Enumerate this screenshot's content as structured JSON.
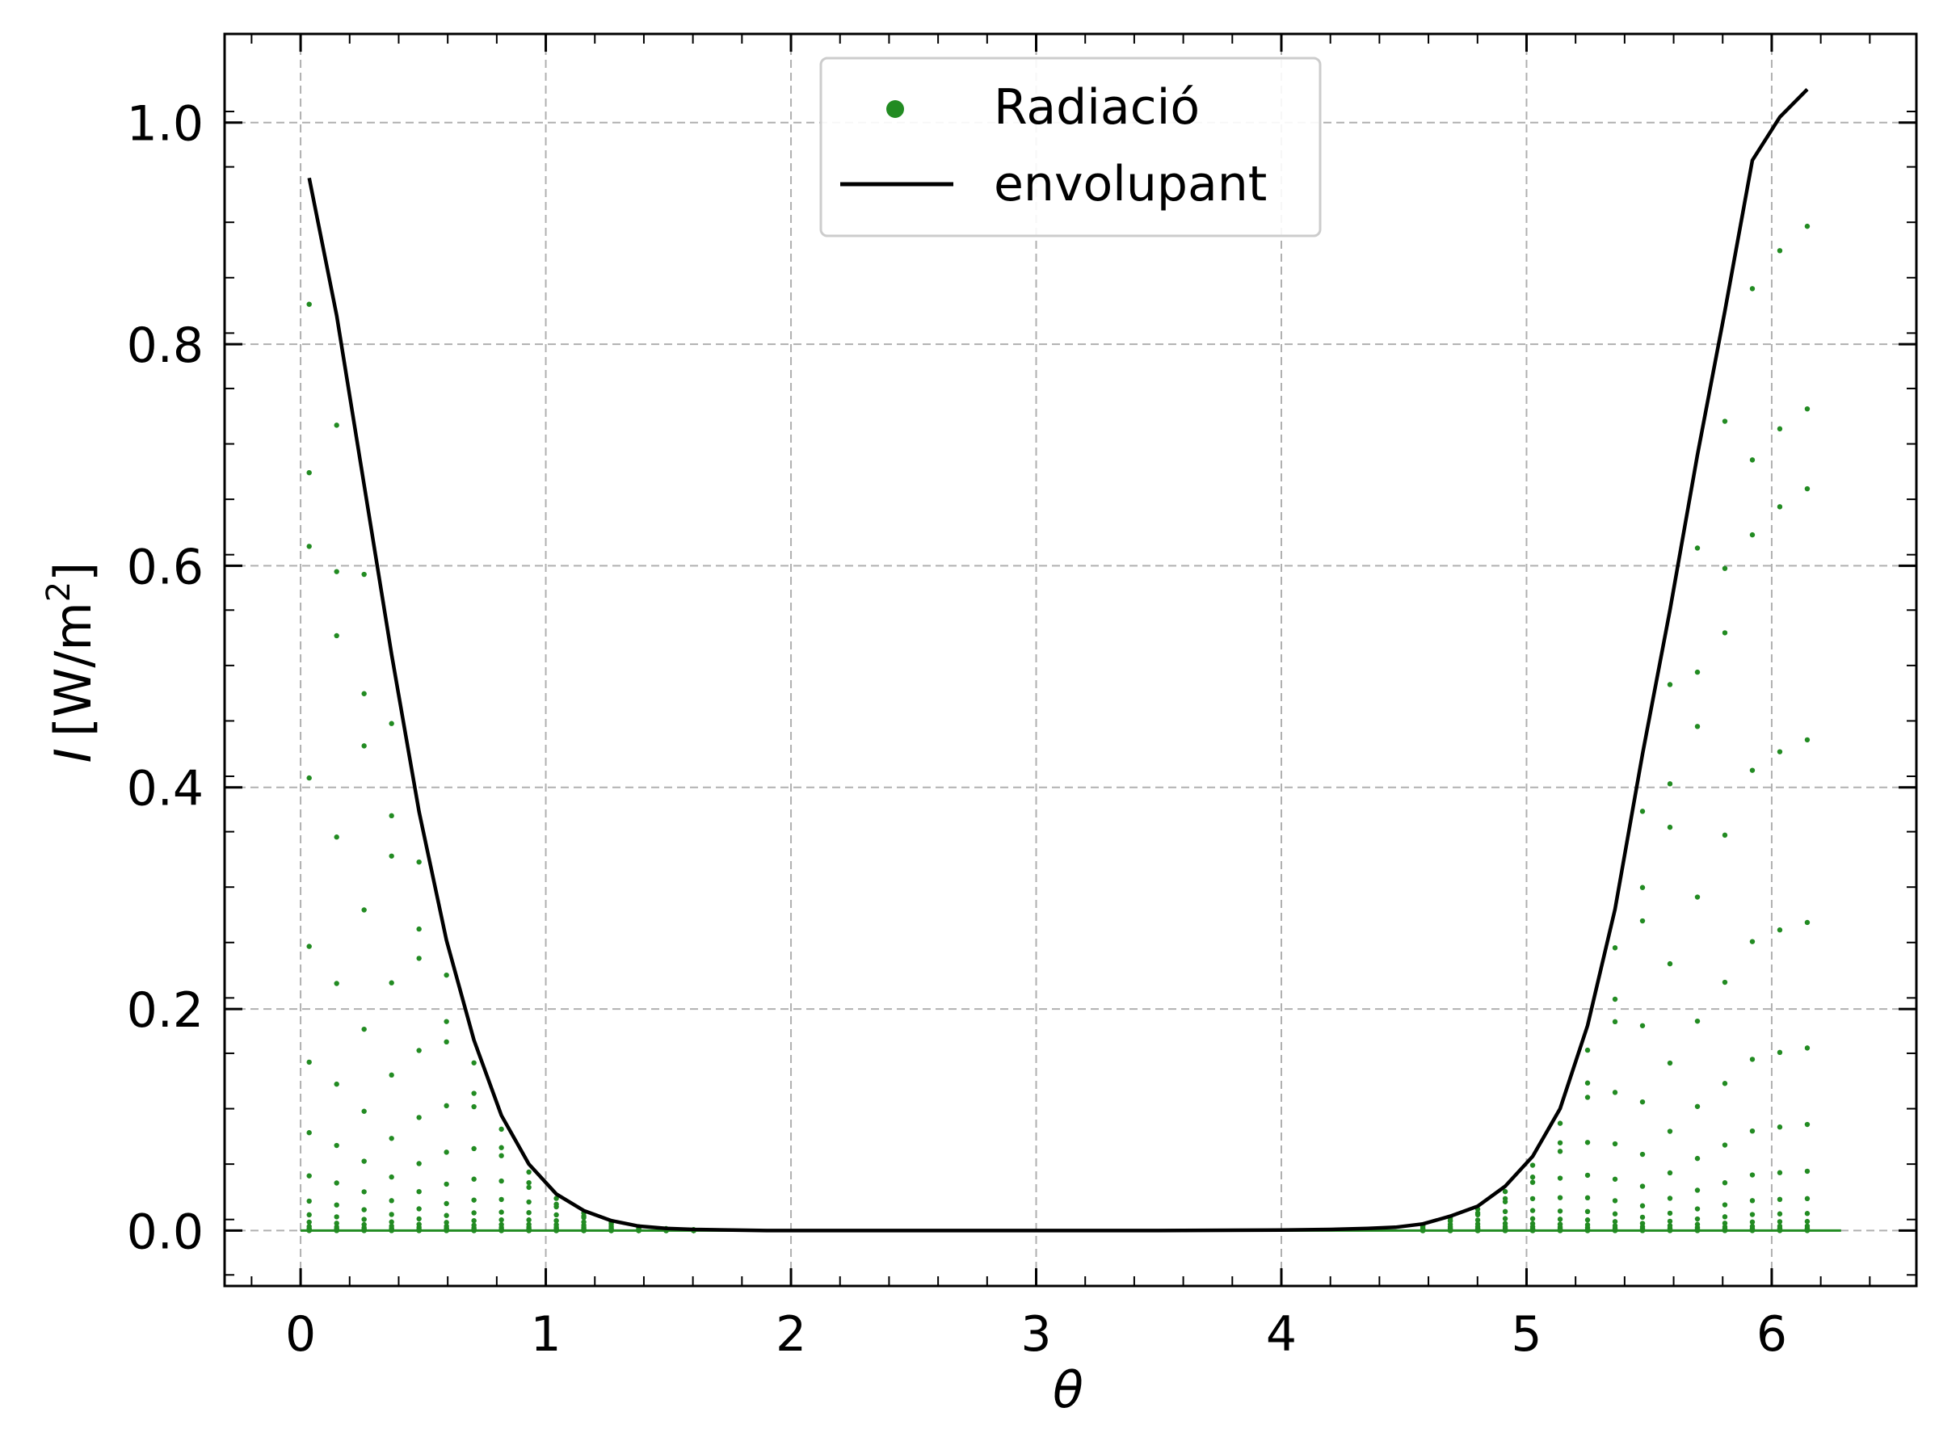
{
  "chart_data": {
    "type": "scatter",
    "xlabel": "θ",
    "ylabel_italic": "I",
    "ylabel_unit": "[W/m",
    "ylabel_sup": "2",
    "ylabel_close": "]",
    "xlim": [
      -0.31,
      6.59
    ],
    "ylim": [
      -0.05,
      1.08
    ],
    "x_ticks": [
      0,
      1,
      2,
      3,
      4,
      5,
      6
    ],
    "x_tick_labels": [
      "0",
      "1",
      "2",
      "3",
      "4",
      "5",
      "6"
    ],
    "y_ticks": [
      0.0,
      0.2,
      0.4,
      0.6,
      0.8,
      1.0
    ],
    "y_tick_labels": [
      "0.0",
      "0.2",
      "0.4",
      "0.6",
      "0.8",
      "1.0"
    ],
    "grid": true,
    "legend_position": "top-center",
    "colors": {
      "scatter": "#228b22",
      "envelope": "#000000",
      "grid": "#b0b0b0"
    },
    "series": [
      {
        "name": "Radiació",
        "type": "scatter",
        "theta": [
          0.035,
          0.147,
          0.259,
          0.371,
          0.483,
          0.595,
          0.707,
          0.819,
          0.931,
          1.043,
          1.155,
          1.267,
          1.379,
          1.491,
          1.603,
          4.577,
          4.689,
          4.801,
          4.913,
          5.025,
          5.137,
          5.249,
          5.361,
          5.473,
          5.585,
          5.697,
          5.809,
          5.921,
          6.033,
          6.145
        ],
        "peak_values": [
          0.95,
          0.826,
          0.673,
          0.52,
          0.378,
          0.262,
          0.172,
          0.104,
          0.06,
          0.033,
          0.018,
          0.009,
          0.004,
          0.002,
          0.001,
          0.006,
          0.013,
          0.022,
          0.04,
          0.067,
          0.11,
          0.185,
          0.29,
          0.43,
          0.56,
          0.7,
          0.83,
          0.966,
          1.005,
          1.03
        ],
        "value_factors": [
          0.88,
          0.72,
          0.65,
          0.43,
          0.27,
          0.16,
          0.093,
          0.052,
          0.028,
          0.015,
          0.008,
          0.004,
          0.002,
          0.001,
          0.0005,
          0.0002,
          0.0001,
          0
        ]
      },
      {
        "name": "envolupant",
        "type": "line",
        "x": [
          0.035,
          0.147,
          0.259,
          0.371,
          0.483,
          0.595,
          0.707,
          0.819,
          0.931,
          1.043,
          1.155,
          1.267,
          1.379,
          1.491,
          1.603,
          1.9,
          2.5,
          3.0,
          3.5,
          4.0,
          4.2,
          4.353,
          4.465,
          4.577,
          4.689,
          4.801,
          4.913,
          5.025,
          5.137,
          5.249,
          5.361,
          5.473,
          5.585,
          5.697,
          5.809,
          5.921,
          6.033,
          6.145
        ],
        "y": [
          0.95,
          0.826,
          0.673,
          0.52,
          0.378,
          0.262,
          0.172,
          0.104,
          0.06,
          0.033,
          0.018,
          0.009,
          0.004,
          0.002,
          0.001,
          0.0,
          0.0,
          0.0,
          0.0,
          0.0005,
          0.001,
          0.002,
          0.003,
          0.006,
          0.013,
          0.022,
          0.04,
          0.067,
          0.11,
          0.185,
          0.29,
          0.43,
          0.56,
          0.7,
          0.83,
          0.966,
          1.005,
          1.03
        ]
      }
    ],
    "baseline_range": [
      0,
      6.283
    ]
  }
}
